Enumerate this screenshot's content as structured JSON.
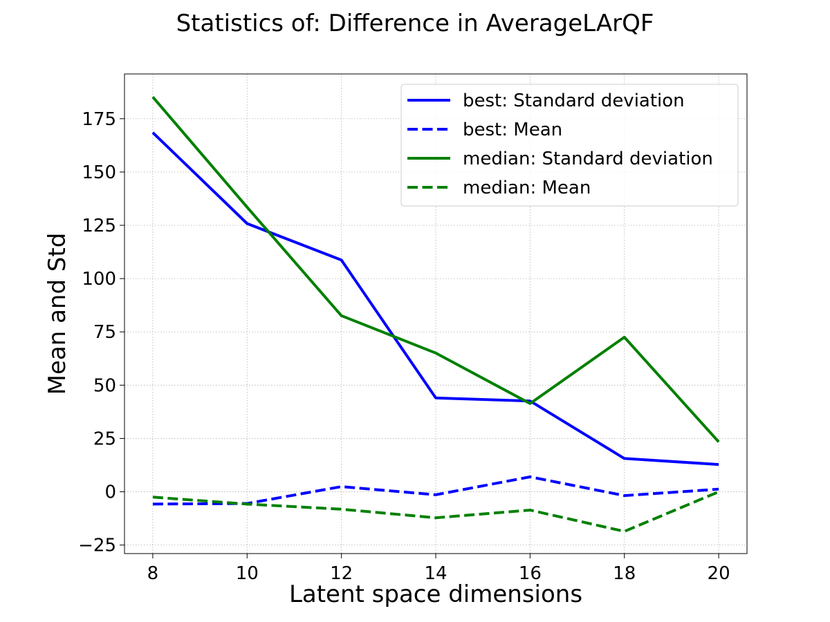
{
  "chart_data": {
    "type": "line",
    "title": "Statistics of: Difference in AverageLArQF",
    "xlabel": "Latent space dimensions",
    "ylabel": "Mean and Std",
    "x": [
      8,
      10,
      12,
      14,
      16,
      18,
      20
    ],
    "xlim": [
      7.4,
      20.6
    ],
    "ylim": [
      -29,
      196
    ],
    "xticks": [
      8,
      10,
      12,
      14,
      16,
      18,
      20
    ],
    "yticks": [
      -25,
      0,
      25,
      50,
      75,
      100,
      125,
      150,
      175
    ],
    "xtick_labels": [
      "8",
      "10",
      "12",
      "14",
      "16",
      "18",
      "20"
    ],
    "ytick_labels": [
      "−25",
      "0",
      "25",
      "50",
      "75",
      "100",
      "125",
      "150",
      "175"
    ],
    "grid": true,
    "legend_position": "top-right",
    "series": [
      {
        "name": "best: Standard deviation",
        "color": "#0000ff",
        "style": "solid",
        "values": [
          168.5,
          125.8,
          108.7,
          44.0,
          42.6,
          15.6,
          12.8
        ]
      },
      {
        "name": "best: Mean",
        "color": "#0000ff",
        "style": "dashed",
        "values": [
          -5.8,
          -5.5,
          2.4,
          -1.4,
          7.0,
          -1.8,
          1.2
        ]
      },
      {
        "name": "median: Standard deviation",
        "color": "#008000",
        "style": "solid",
        "values": [
          185.2,
          133.5,
          82.6,
          65.1,
          41.4,
          72.5,
          23.4
        ]
      },
      {
        "name": "median: Mean",
        "color": "#008000",
        "style": "dashed",
        "values": [
          -2.5,
          -5.8,
          -8.2,
          -12.2,
          -8.6,
          -18.6,
          0.0
        ]
      }
    ]
  }
}
